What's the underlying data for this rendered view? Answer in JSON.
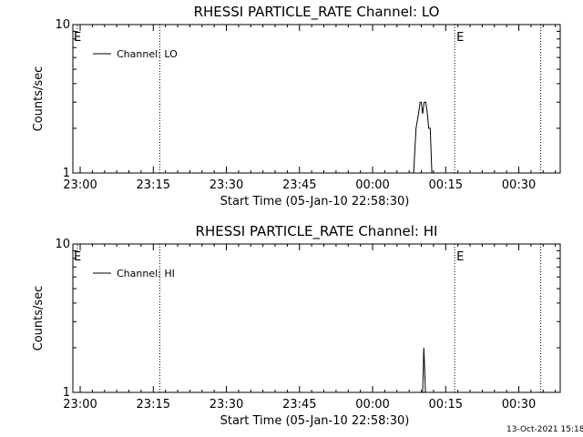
{
  "footer_date": "13-Oct-2021 15:18",
  "chart_data": [
    {
      "type": "line",
      "title": "RHESSI PARTICLE_RATE Channel: LO",
      "xlabel": "Start Time (05-Jan-10 22:58:30)",
      "ylabel": "Counts/sec",
      "y_scale": "log",
      "ylim": [
        1,
        10
      ],
      "y_ticks": [
        "1",
        "10"
      ],
      "xlim": [
        "22:58:30",
        "00:38:30"
      ],
      "x_ticks": [
        "23:00",
        "23:15",
        "23:30",
        "23:45",
        "00:00",
        "00:15",
        "00:30"
      ],
      "legend": {
        "placement": "top-left",
        "entries": [
          "Channel: LO"
        ]
      },
      "markers": [
        {
          "time": "23:16:20",
          "label": ""
        },
        {
          "time": "00:16:50",
          "label": "E"
        },
        {
          "time": "00:34:30",
          "label": ""
        }
      ],
      "edge_label": "E",
      "series": [
        {
          "name": "Channel: LO",
          "x": [
            "00:08:25",
            "00:08:55",
            "00:09:25",
            "00:09:45",
            "00:10:00",
            "00:10:15",
            "00:10:35",
            "00:10:55",
            "00:11:15",
            "00:11:30",
            "00:11:50",
            "00:12:10"
          ],
          "y": [
            1,
            2,
            2.5,
            3,
            3,
            2.5,
            3,
            3,
            2.5,
            2,
            2,
            1
          ]
        }
      ]
    },
    {
      "type": "line",
      "title": "RHESSI PARTICLE_RATE Channel: HI",
      "xlabel": "Start Time (05-Jan-10 22:58:30)",
      "ylabel": "Counts/sec",
      "y_scale": "log",
      "ylim": [
        1,
        10
      ],
      "y_ticks": [
        "1",
        "10"
      ],
      "xlim": [
        "22:58:30",
        "00:38:30"
      ],
      "x_ticks": [
        "23:00",
        "23:15",
        "23:30",
        "23:45",
        "00:00",
        "00:15",
        "00:30"
      ],
      "legend": {
        "placement": "top-left",
        "entries": [
          "Channel: HI"
        ]
      },
      "markers": [
        {
          "time": "23:16:20",
          "label": ""
        },
        {
          "time": "00:16:50",
          "label": "E"
        },
        {
          "time": "00:34:30",
          "label": ""
        }
      ],
      "edge_label": "E",
      "series": [
        {
          "name": "Channel: HI",
          "x": [
            "00:10:15",
            "00:10:25",
            "00:10:30",
            "00:10:40",
            "00:10:50"
          ],
          "y": [
            1,
            1.5,
            2,
            1.5,
            1
          ]
        }
      ]
    }
  ]
}
